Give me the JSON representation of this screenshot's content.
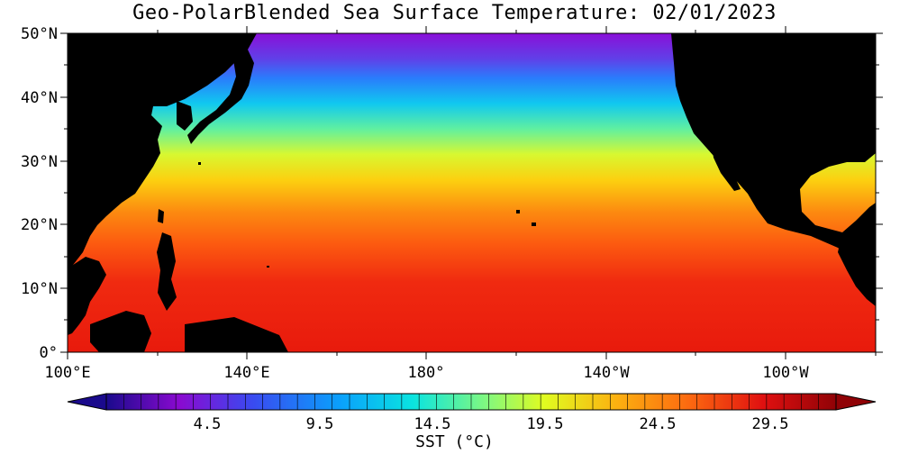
{
  "title": "Geo-PolarBlended Sea Surface Temperature: 02/01/2023",
  "map": {
    "lat_labels": [
      "50°N",
      "40°N",
      "30°N",
      "20°N",
      "10°N",
      "0°"
    ],
    "lon_labels": [
      "100°E",
      "140°E",
      "180°",
      "140°W",
      "100°W"
    ],
    "land_color": "#000000"
  },
  "colorbar": {
    "ticks": [
      "4.5",
      "9.5",
      "14.5",
      "19.5",
      "24.5",
      "29.5"
    ],
    "label": "SST (°C)",
    "colors": [
      "#1a0a8c",
      "#2e0aa0",
      "#4a0ab4",
      "#6a0ac4",
      "#8a0ad0",
      "#9a1ad8",
      "#7a2ae0",
      "#5a3ae8",
      "#3a4af0",
      "#2a5af8",
      "#1a6afc",
      "#0a7afc",
      "#0a8afc",
      "#0a9afc",
      "#0aaafc",
      "#0abafc",
      "#0acaf8",
      "#0ad8f0",
      "#0ae4e0",
      "#20ecc8",
      "#40f0b0",
      "#60f498",
      "#80f880",
      "#a0fc60",
      "#c0fc40",
      "#e0fc20",
      "#f8f410",
      "#fce010",
      "#fcc810",
      "#fcb010",
      "#fc9810",
      "#fc8010",
      "#fc6810",
      "#fc5010",
      "#f83810",
      "#f02010",
      "#e01010",
      "#d00a0a",
      "#c0080a",
      "#b0060a",
      "#a00408",
      "#900206"
    ]
  }
}
